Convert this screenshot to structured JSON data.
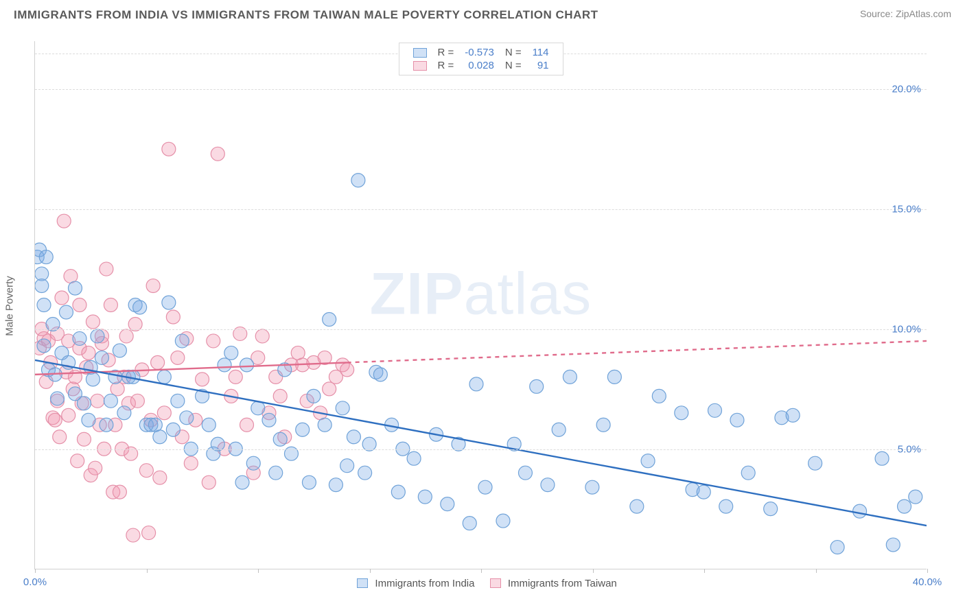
{
  "title": "IMMIGRANTS FROM INDIA VS IMMIGRANTS FROM TAIWAN MALE POVERTY CORRELATION CHART",
  "source_label": "Source:",
  "source_name": "ZipAtlas.com",
  "ylabel": "Male Poverty",
  "watermark_a": "ZIP",
  "watermark_b": "atlas",
  "chart": {
    "type": "scatter",
    "xlim": [
      0,
      40
    ],
    "ylim": [
      0,
      22
    ],
    "xtick_positions": [
      0,
      5,
      10,
      15,
      20,
      25,
      30,
      35,
      40
    ],
    "xtick_labels": {
      "0": "0.0%",
      "40": "40.0%"
    },
    "ytick_positions": [
      5,
      10,
      15,
      20
    ],
    "ytick_labels": {
      "5": "5.0%",
      "10": "10.0%",
      "15": "15.0%",
      "20": "20.0%"
    },
    "grid_color": "#dcdcdc",
    "background_color": "#ffffff",
    "axis_color": "#d0d0d0",
    "tick_font_color": "#4a7ec9",
    "tick_fontsize": 15,
    "title_fontsize": 17,
    "title_color": "#5a5a5a",
    "marker_radius": 10,
    "marker_stroke_width": 1.2,
    "line_width": 2.4
  },
  "series": {
    "india": {
      "label": "Immigrants from India",
      "fill": "rgba(120,170,230,0.35)",
      "stroke": "#6fa2d8",
      "line_color": "#2e6fc0",
      "R": "-0.573",
      "N": "114",
      "trend": {
        "x1": 0,
        "y1": 8.7,
        "x2": 40,
        "y2": 1.8
      },
      "points": [
        [
          0.1,
          13.0
        ],
        [
          0.2,
          13.3
        ],
        [
          0.3,
          12.3
        ],
        [
          0.3,
          11.8
        ],
        [
          0.5,
          13.0
        ],
        [
          0.4,
          11.0
        ],
        [
          0.4,
          9.3
        ],
        [
          0.8,
          10.2
        ],
        [
          0.6,
          8.3
        ],
        [
          0.9,
          8.1
        ],
        [
          1.0,
          7.1
        ],
        [
          1.2,
          9.0
        ],
        [
          1.4,
          10.7
        ],
        [
          1.5,
          8.6
        ],
        [
          1.8,
          11.7
        ],
        [
          1.8,
          7.3
        ],
        [
          2.0,
          9.6
        ],
        [
          2.2,
          6.9
        ],
        [
          2.4,
          6.2
        ],
        [
          2.5,
          8.4
        ],
        [
          2.6,
          7.9
        ],
        [
          2.8,
          9.7
        ],
        [
          3.0,
          8.8
        ],
        [
          3.2,
          6.0
        ],
        [
          3.4,
          7.0
        ],
        [
          3.6,
          8.0
        ],
        [
          3.8,
          9.1
        ],
        [
          4.0,
          6.5
        ],
        [
          4.2,
          8.0
        ],
        [
          4.4,
          8.0
        ],
        [
          4.5,
          11.0
        ],
        [
          4.7,
          10.9
        ],
        [
          5.0,
          6.0
        ],
        [
          5.2,
          6.0
        ],
        [
          5.4,
          6.0
        ],
        [
          5.6,
          5.5
        ],
        [
          5.8,
          8.0
        ],
        [
          6.0,
          11.1
        ],
        [
          6.2,
          5.8
        ],
        [
          6.4,
          7.0
        ],
        [
          6.6,
          9.5
        ],
        [
          6.8,
          6.3
        ],
        [
          7.0,
          5.0
        ],
        [
          7.5,
          7.2
        ],
        [
          7.8,
          6.0
        ],
        [
          8.0,
          4.8
        ],
        [
          8.2,
          5.2
        ],
        [
          8.5,
          8.5
        ],
        [
          8.8,
          9.0
        ],
        [
          9.0,
          5.0
        ],
        [
          9.3,
          3.6
        ],
        [
          9.5,
          8.5
        ],
        [
          9.8,
          4.4
        ],
        [
          10.0,
          6.7
        ],
        [
          10.5,
          6.2
        ],
        [
          10.8,
          4.0
        ],
        [
          11.0,
          5.4
        ],
        [
          11.2,
          8.3
        ],
        [
          11.5,
          4.8
        ],
        [
          12.0,
          5.8
        ],
        [
          12.3,
          3.6
        ],
        [
          12.5,
          7.2
        ],
        [
          13.0,
          6.0
        ],
        [
          13.2,
          10.4
        ],
        [
          13.5,
          3.5
        ],
        [
          13.8,
          6.7
        ],
        [
          14.0,
          4.3
        ],
        [
          14.3,
          5.5
        ],
        [
          14.5,
          16.2
        ],
        [
          14.8,
          4.0
        ],
        [
          15.0,
          5.2
        ],
        [
          15.3,
          8.2
        ],
        [
          15.5,
          8.1
        ],
        [
          16.0,
          6.0
        ],
        [
          16.3,
          3.2
        ],
        [
          16.5,
          5.0
        ],
        [
          17.0,
          4.6
        ],
        [
          17.5,
          3.0
        ],
        [
          18.0,
          5.6
        ],
        [
          18.5,
          2.7
        ],
        [
          19.0,
          5.2
        ],
        [
          19.5,
          1.9
        ],
        [
          19.8,
          7.7
        ],
        [
          20.2,
          3.4
        ],
        [
          21.0,
          2.0
        ],
        [
          21.5,
          5.2
        ],
        [
          22.0,
          4.0
        ],
        [
          22.5,
          7.6
        ],
        [
          23.0,
          3.5
        ],
        [
          23.5,
          5.8
        ],
        [
          24.0,
          8.0
        ],
        [
          25.0,
          3.4
        ],
        [
          25.5,
          6.0
        ],
        [
          26.0,
          8.0
        ],
        [
          27.0,
          2.6
        ],
        [
          27.5,
          4.5
        ],
        [
          28.0,
          7.2
        ],
        [
          29.0,
          6.5
        ],
        [
          29.5,
          3.3
        ],
        [
          30.0,
          3.2
        ],
        [
          30.5,
          6.6
        ],
        [
          31.0,
          2.6
        ],
        [
          31.5,
          6.2
        ],
        [
          32.0,
          4.0
        ],
        [
          33.0,
          2.5
        ],
        [
          33.5,
          6.3
        ],
        [
          34.0,
          6.4
        ],
        [
          35.0,
          4.4
        ],
        [
          36.0,
          0.9
        ],
        [
          37.0,
          2.4
        ],
        [
          38.0,
          4.6
        ],
        [
          38.5,
          1.0
        ],
        [
          39.0,
          2.6
        ],
        [
          39.5,
          3.0
        ]
      ]
    },
    "taiwan": {
      "label": "Immigrants from Taiwan",
      "fill": "rgba(240,150,175,0.35)",
      "stroke": "#e58fa8",
      "line_color": "#e06b8b",
      "R": "0.028",
      "N": "91",
      "trend_solid": {
        "x1": 0,
        "y1": 8.1,
        "x2": 14,
        "y2": 8.6
      },
      "trend_dash": {
        "x1": 14,
        "y1": 8.6,
        "x2": 40,
        "y2": 9.5
      },
      "points": [
        [
          0.2,
          9.2
        ],
        [
          0.3,
          10.0
        ],
        [
          0.4,
          9.6
        ],
        [
          0.5,
          7.8
        ],
        [
          0.6,
          9.5
        ],
        [
          0.7,
          8.6
        ],
        [
          0.8,
          6.3
        ],
        [
          0.9,
          6.2
        ],
        [
          1.0,
          9.8
        ],
        [
          1.0,
          7.0
        ],
        [
          1.1,
          5.5
        ],
        [
          1.2,
          11.3
        ],
        [
          1.3,
          14.5
        ],
        [
          1.4,
          8.2
        ],
        [
          1.5,
          9.5
        ],
        [
          1.5,
          6.4
        ],
        [
          1.6,
          12.2
        ],
        [
          1.7,
          7.5
        ],
        [
          1.8,
          8.0
        ],
        [
          1.9,
          4.5
        ],
        [
          2.0,
          9.2
        ],
        [
          2.0,
          11.0
        ],
        [
          2.1,
          6.9
        ],
        [
          2.2,
          5.4
        ],
        [
          2.3,
          8.4
        ],
        [
          2.4,
          9.0
        ],
        [
          2.5,
          3.9
        ],
        [
          2.6,
          10.3
        ],
        [
          2.7,
          4.2
        ],
        [
          2.8,
          7.0
        ],
        [
          2.9,
          6.0
        ],
        [
          3.0,
          9.4
        ],
        [
          3.0,
          9.7
        ],
        [
          3.1,
          5.0
        ],
        [
          3.2,
          12.5
        ],
        [
          3.3,
          8.7
        ],
        [
          3.4,
          11.0
        ],
        [
          3.5,
          3.2
        ],
        [
          3.6,
          6.0
        ],
        [
          3.7,
          7.5
        ],
        [
          3.8,
          3.2
        ],
        [
          3.9,
          5.0
        ],
        [
          4.0,
          8.0
        ],
        [
          4.1,
          9.7
        ],
        [
          4.2,
          6.9
        ],
        [
          4.3,
          4.8
        ],
        [
          4.4,
          1.4
        ],
        [
          4.5,
          10.2
        ],
        [
          4.6,
          7.0
        ],
        [
          4.8,
          8.3
        ],
        [
          5.0,
          4.1
        ],
        [
          5.1,
          1.5
        ],
        [
          5.2,
          6.2
        ],
        [
          5.3,
          11.8
        ],
        [
          5.5,
          8.6
        ],
        [
          5.6,
          3.8
        ],
        [
          5.8,
          6.5
        ],
        [
          6.0,
          17.5
        ],
        [
          6.2,
          10.5
        ],
        [
          6.4,
          8.8
        ],
        [
          6.6,
          5.5
        ],
        [
          6.8,
          9.6
        ],
        [
          7.0,
          4.4
        ],
        [
          7.2,
          6.2
        ],
        [
          7.5,
          7.9
        ],
        [
          7.8,
          3.6
        ],
        [
          8.0,
          9.5
        ],
        [
          8.2,
          17.3
        ],
        [
          8.5,
          5.0
        ],
        [
          8.8,
          7.2
        ],
        [
          9.0,
          8.0
        ],
        [
          9.2,
          9.8
        ],
        [
          9.5,
          6.0
        ],
        [
          9.8,
          4.0
        ],
        [
          10.0,
          8.8
        ],
        [
          10.2,
          9.7
        ],
        [
          10.5,
          6.5
        ],
        [
          10.8,
          8.0
        ],
        [
          11.0,
          7.2
        ],
        [
          11.2,
          5.5
        ],
        [
          11.5,
          8.5
        ],
        [
          11.8,
          9.0
        ],
        [
          12.0,
          8.5
        ],
        [
          12.2,
          7.0
        ],
        [
          12.5,
          8.6
        ],
        [
          12.8,
          6.5
        ],
        [
          13.0,
          8.8
        ],
        [
          13.2,
          7.5
        ],
        [
          13.5,
          8.0
        ],
        [
          13.8,
          8.5
        ],
        [
          14.0,
          8.3
        ]
      ]
    }
  },
  "legend_top": {
    "r_label": "R =",
    "n_label": "N ="
  }
}
